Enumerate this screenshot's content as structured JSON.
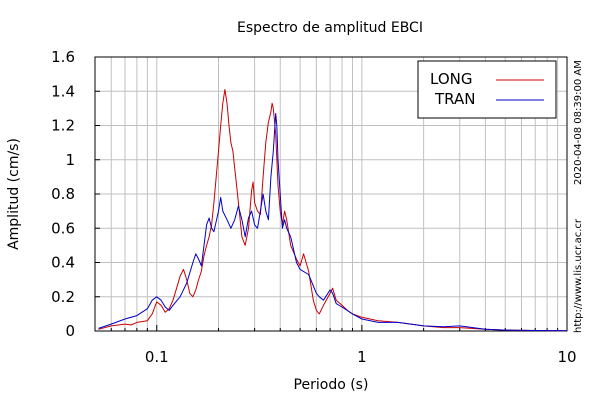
{
  "chart_data": {
    "type": "line",
    "title": "Espectro de amplitud EBCI",
    "xlabel": "Periodo (s)",
    "ylabel": "Amplitud (cm/s)",
    "xscale": "log",
    "xlim": [
      0.05,
      10
    ],
    "ylim": [
      0,
      1.6
    ],
    "grid": true,
    "legend_position": "top-right",
    "timestamp": "2020-04-08 08:39:00 AM",
    "url": "http://www.lis.ucr.ac.cr",
    "x_ticks": [
      {
        "value": 0.1,
        "label": "0.1"
      },
      {
        "value": 1,
        "label": "1"
      },
      {
        "value": 10,
        "label": "10"
      }
    ],
    "y_ticks": [
      {
        "value": 0,
        "label": "0"
      },
      {
        "value": 0.2,
        "label": "0.2"
      },
      {
        "value": 0.4,
        "label": "0.4"
      },
      {
        "value": 0.6,
        "label": "0.6"
      },
      {
        "value": 0.8,
        "label": "0.8"
      },
      {
        "value": 1.0,
        "label": "1"
      },
      {
        "value": 1.2,
        "label": "1.2"
      },
      {
        "value": 1.4,
        "label": "1.4"
      },
      {
        "value": 1.6,
        "label": "1.6"
      }
    ],
    "series": [
      {
        "name": "LONG",
        "color": "#cc0000",
        "points": [
          [
            0.052,
            0.01
          ],
          [
            0.06,
            0.03
          ],
          [
            0.07,
            0.04
          ],
          [
            0.075,
            0.035
          ],
          [
            0.08,
            0.05
          ],
          [
            0.09,
            0.06
          ],
          [
            0.095,
            0.1
          ],
          [
            0.1,
            0.17
          ],
          [
            0.105,
            0.15
          ],
          [
            0.11,
            0.11
          ],
          [
            0.115,
            0.13
          ],
          [
            0.12,
            0.18
          ],
          [
            0.125,
            0.25
          ],
          [
            0.13,
            0.32
          ],
          [
            0.135,
            0.36
          ],
          [
            0.14,
            0.3
          ],
          [
            0.145,
            0.22
          ],
          [
            0.15,
            0.2
          ],
          [
            0.155,
            0.24
          ],
          [
            0.16,
            0.3
          ],
          [
            0.165,
            0.35
          ],
          [
            0.17,
            0.44
          ],
          [
            0.175,
            0.5
          ],
          [
            0.18,
            0.55
          ],
          [
            0.185,
            0.62
          ],
          [
            0.19,
            0.75
          ],
          [
            0.195,
            0.9
          ],
          [
            0.2,
            1.05
          ],
          [
            0.205,
            1.2
          ],
          [
            0.21,
            1.33
          ],
          [
            0.215,
            1.41
          ],
          [
            0.22,
            1.33
          ],
          [
            0.225,
            1.2
          ],
          [
            0.23,
            1.1
          ],
          [
            0.235,
            1.05
          ],
          [
            0.24,
            0.95
          ],
          [
            0.245,
            0.85
          ],
          [
            0.25,
            0.75
          ],
          [
            0.26,
            0.55
          ],
          [
            0.27,
            0.5
          ],
          [
            0.28,
            0.6
          ],
          [
            0.29,
            0.82
          ],
          [
            0.295,
            0.87
          ],
          [
            0.3,
            0.75
          ],
          [
            0.31,
            0.7
          ],
          [
            0.32,
            0.68
          ],
          [
            0.33,
            0.9
          ],
          [
            0.34,
            1.1
          ],
          [
            0.35,
            1.22
          ],
          [
            0.36,
            1.28
          ],
          [
            0.365,
            1.33
          ],
          [
            0.37,
            1.3
          ],
          [
            0.38,
            1.15
          ],
          [
            0.39,
            0.85
          ],
          [
            0.4,
            0.7
          ],
          [
            0.41,
            0.62
          ],
          [
            0.42,
            0.7
          ],
          [
            0.43,
            0.65
          ],
          [
            0.45,
            0.5
          ],
          [
            0.48,
            0.42
          ],
          [
            0.5,
            0.38
          ],
          [
            0.52,
            0.45
          ],
          [
            0.55,
            0.35
          ],
          [
            0.58,
            0.18
          ],
          [
            0.6,
            0.12
          ],
          [
            0.62,
            0.1
          ],
          [
            0.65,
            0.15
          ],
          [
            0.7,
            0.22
          ],
          [
            0.72,
            0.25
          ],
          [
            0.75,
            0.18
          ],
          [
            0.8,
            0.15
          ],
          [
            0.85,
            0.12
          ],
          [
            0.9,
            0.1
          ],
          [
            1.0,
            0.08
          ],
          [
            1.2,
            0.06
          ],
          [
            1.5,
            0.05
          ],
          [
            2.0,
            0.03
          ],
          [
            2.5,
            0.02
          ],
          [
            3.0,
            0.02
          ],
          [
            4.0,
            0.01
          ],
          [
            5.0,
            0.005
          ],
          [
            7.0,
            0.003
          ],
          [
            10.0,
            0.002
          ]
        ]
      },
      {
        "name": "TRAN",
        "color": "#0000cc",
        "points": [
          [
            0.052,
            0.015
          ],
          [
            0.06,
            0.04
          ],
          [
            0.07,
            0.07
          ],
          [
            0.08,
            0.09
          ],
          [
            0.09,
            0.13
          ],
          [
            0.095,
            0.18
          ],
          [
            0.1,
            0.2
          ],
          [
            0.105,
            0.18
          ],
          [
            0.11,
            0.14
          ],
          [
            0.115,
            0.12
          ],
          [
            0.12,
            0.15
          ],
          [
            0.13,
            0.2
          ],
          [
            0.14,
            0.28
          ],
          [
            0.15,
            0.4
          ],
          [
            0.155,
            0.45
          ],
          [
            0.16,
            0.42
          ],
          [
            0.165,
            0.38
          ],
          [
            0.17,
            0.5
          ],
          [
            0.175,
            0.62
          ],
          [
            0.18,
            0.66
          ],
          [
            0.185,
            0.6
          ],
          [
            0.19,
            0.58
          ],
          [
            0.2,
            0.7
          ],
          [
            0.205,
            0.78
          ],
          [
            0.21,
            0.7
          ],
          [
            0.22,
            0.65
          ],
          [
            0.23,
            0.6
          ],
          [
            0.24,
            0.65
          ],
          [
            0.25,
            0.73
          ],
          [
            0.26,
            0.65
          ],
          [
            0.27,
            0.55
          ],
          [
            0.28,
            0.66
          ],
          [
            0.29,
            0.7
          ],
          [
            0.3,
            0.62
          ],
          [
            0.31,
            0.6
          ],
          [
            0.32,
            0.7
          ],
          [
            0.33,
            0.8
          ],
          [
            0.34,
            0.7
          ],
          [
            0.35,
            0.65
          ],
          [
            0.36,
            0.9
          ],
          [
            0.37,
            1.05
          ],
          [
            0.38,
            1.27
          ],
          [
            0.385,
            1.2
          ],
          [
            0.39,
            1.0
          ],
          [
            0.4,
            0.8
          ],
          [
            0.41,
            0.6
          ],
          [
            0.42,
            0.65
          ],
          [
            0.43,
            0.6
          ],
          [
            0.45,
            0.55
          ],
          [
            0.48,
            0.4
          ],
          [
            0.5,
            0.36
          ],
          [
            0.55,
            0.33
          ],
          [
            0.6,
            0.22
          ],
          [
            0.62,
            0.2
          ],
          [
            0.65,
            0.18
          ],
          [
            0.7,
            0.24
          ],
          [
            0.72,
            0.22
          ],
          [
            0.75,
            0.16
          ],
          [
            0.8,
            0.14
          ],
          [
            0.9,
            0.1
          ],
          [
            1.0,
            0.07
          ],
          [
            1.2,
            0.05
          ],
          [
            1.5,
            0.05
          ],
          [
            2.0,
            0.03
          ],
          [
            2.5,
            0.025
          ],
          [
            3.0,
            0.03
          ],
          [
            4.0,
            0.01
          ],
          [
            5.0,
            0.005
          ],
          [
            7.0,
            0.003
          ],
          [
            10.0,
            0.002
          ]
        ]
      }
    ]
  }
}
